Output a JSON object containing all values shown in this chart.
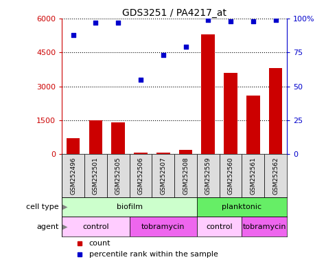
{
  "title": "GDS3251 / PA4217_at",
  "samples": [
    "GSM252496",
    "GSM252501",
    "GSM252505",
    "GSM252506",
    "GSM252507",
    "GSM252508",
    "GSM252559",
    "GSM252560",
    "GSM252561",
    "GSM252562"
  ],
  "counts": [
    700,
    1500,
    1400,
    80,
    60,
    200,
    5300,
    3600,
    2600,
    3800
  ],
  "percentiles": [
    88,
    97,
    97,
    55,
    73,
    79,
    99,
    98,
    98,
    99
  ],
  "ylim_left": [
    0,
    6000
  ],
  "ylim_right": [
    0,
    100
  ],
  "yticks_left": [
    0,
    1500,
    3000,
    4500,
    6000
  ],
  "yticks_right": [
    0,
    25,
    50,
    75,
    100
  ],
  "cell_type_groups": [
    {
      "label": "biofilm",
      "start": 0,
      "end": 5,
      "color": "#ccffcc"
    },
    {
      "label": "planktonic",
      "start": 6,
      "end": 9,
      "color": "#66ee66"
    }
  ],
  "agent_groups": [
    {
      "label": "control",
      "start": 0,
      "end": 2,
      "color": "#ffccff"
    },
    {
      "label": "tobramycin",
      "start": 3,
      "end": 5,
      "color": "#ee66ee"
    },
    {
      "label": "control",
      "start": 6,
      "end": 7,
      "color": "#ffccff"
    },
    {
      "label": "tobramycin",
      "start": 8,
      "end": 9,
      "color": "#ee66ee"
    }
  ],
  "bar_color": "#cc0000",
  "scatter_color": "#0000cc",
  "tick_label_color_left": "#cc0000",
  "tick_label_color_right": "#0000cc",
  "sample_box_color": "#dddddd",
  "left_label_color": "#444444"
}
